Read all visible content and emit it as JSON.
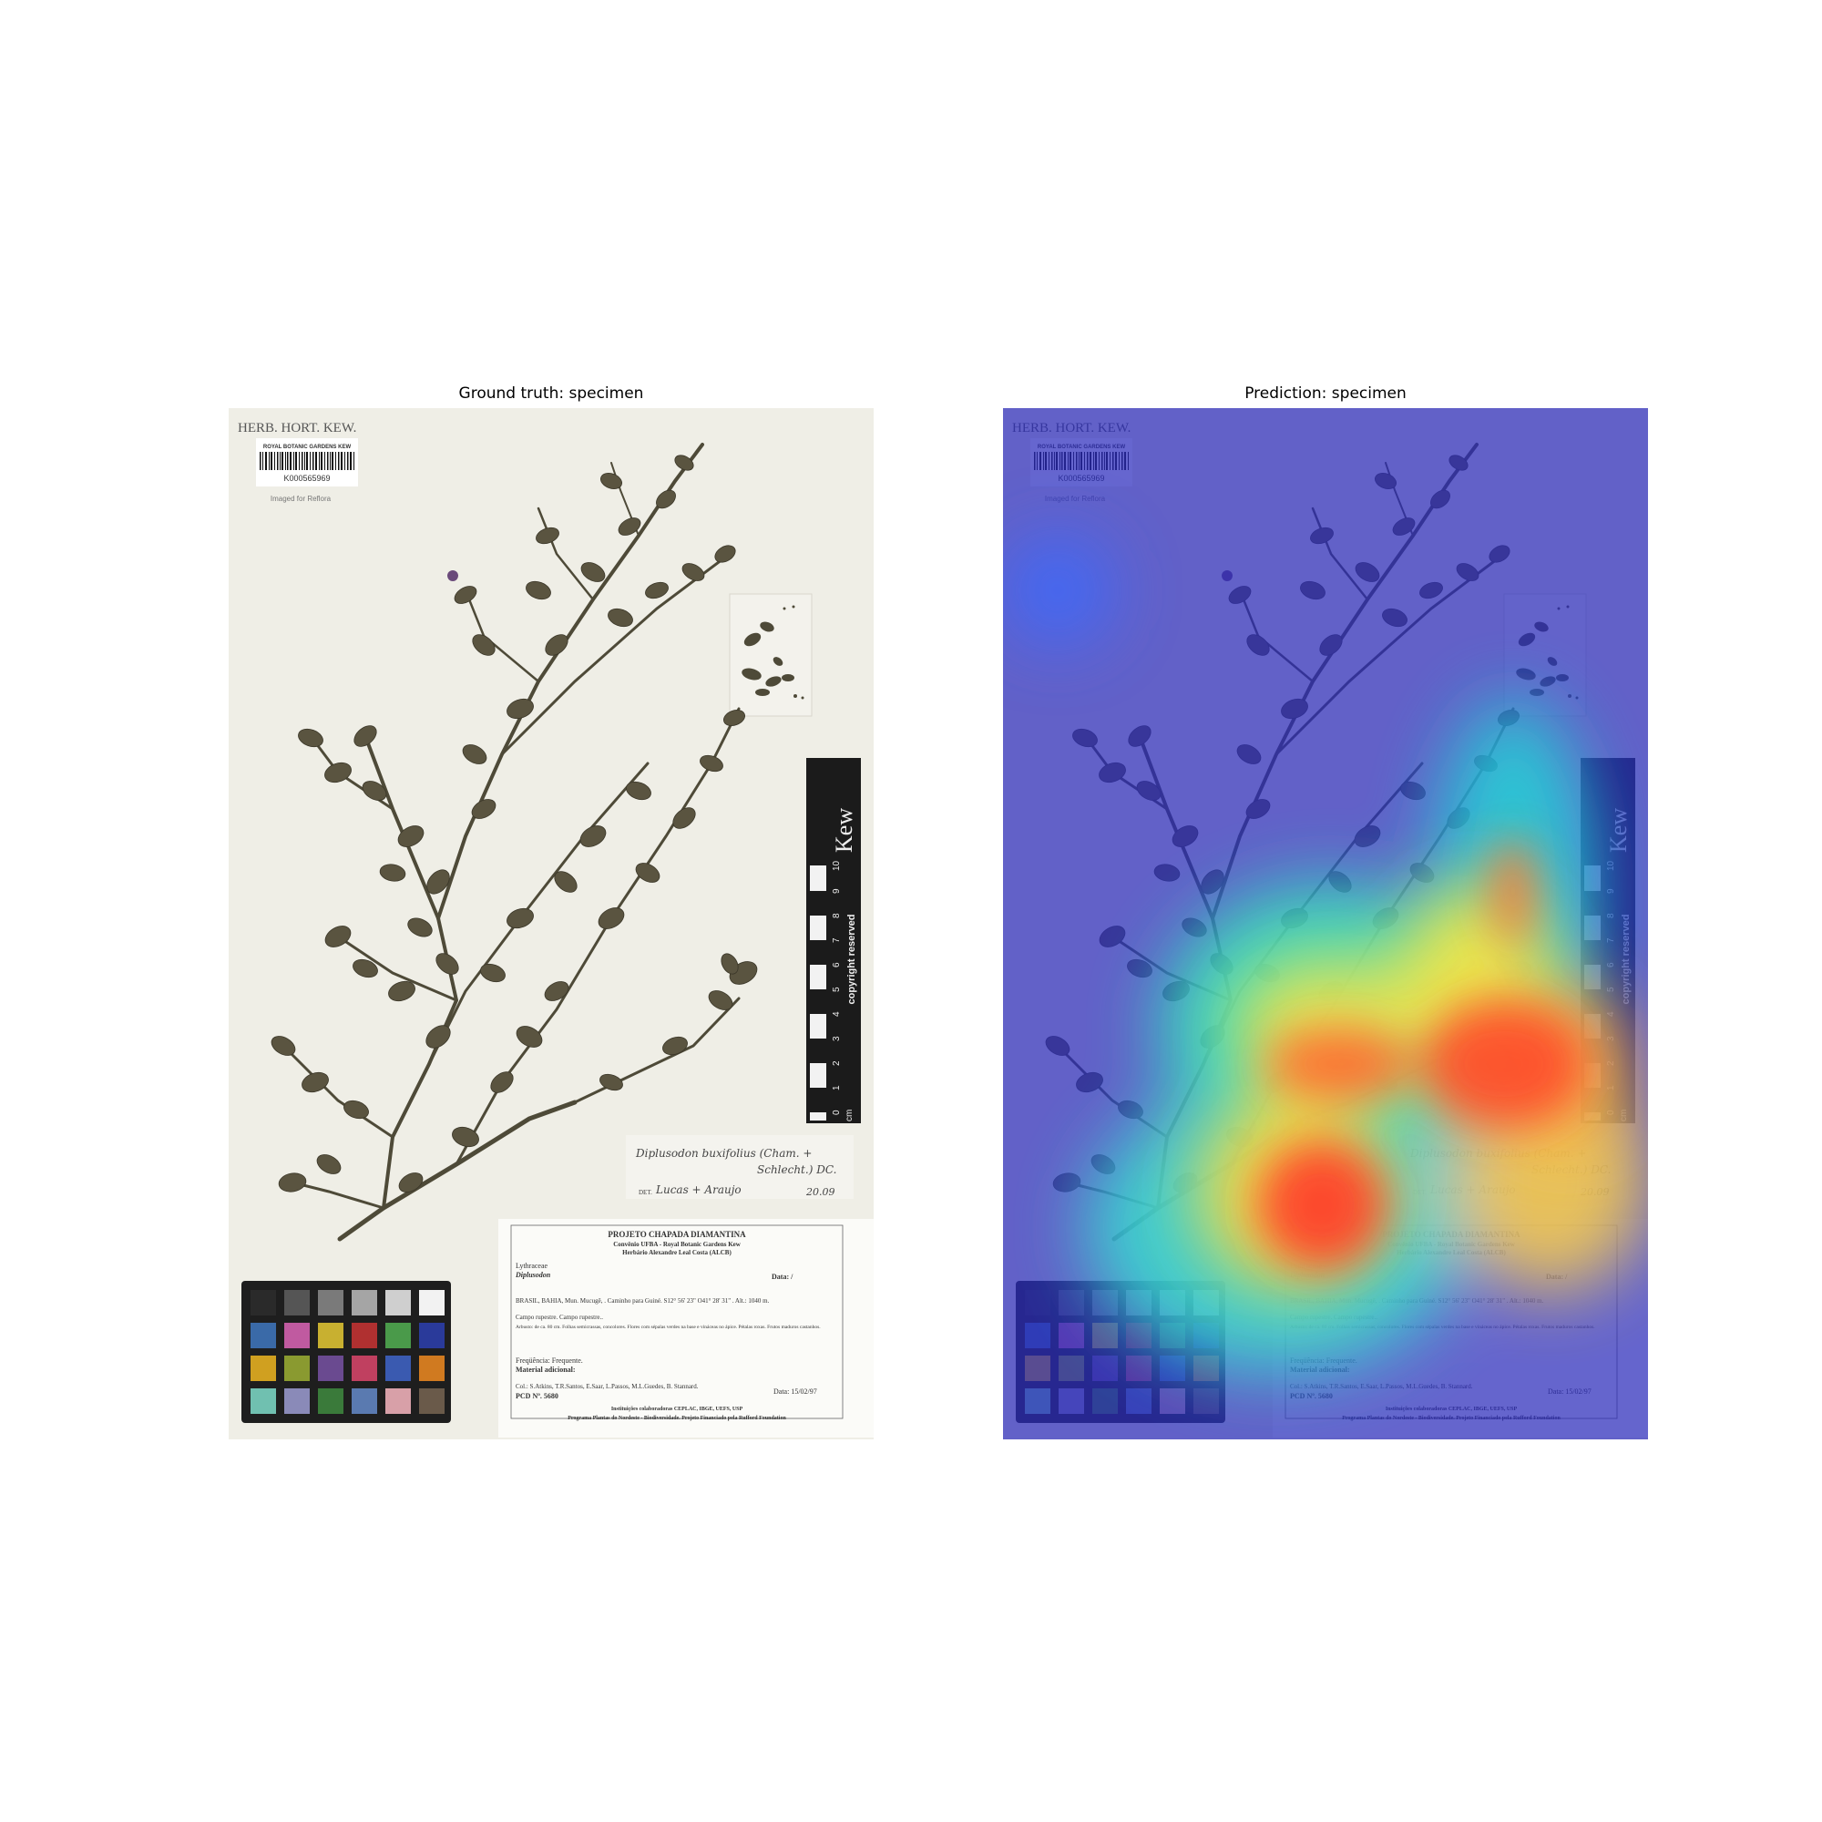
{
  "panels": [
    {
      "title": "Ground truth: specimen",
      "sheet": {
        "herbarium_header": "HERB. HORT. KEW.",
        "barcode_org": "ROYAL BOTANIC GARDENS KEW",
        "barcode_id": "K000565969",
        "imaged_for": "Imaged for Reflora",
        "scale_bar": {
          "brand": "Kew",
          "note": "copyright reserved",
          "unit": "cm",
          "ticks": [
            "0",
            "1",
            "2",
            "3",
            "4",
            "5",
            "6",
            "7",
            "8",
            "9",
            "10"
          ]
        },
        "det_label": {
          "name_line1": "Diplusodon buxifolius (Cham. +",
          "name_line2": "Schlecht.) DC.",
          "det_prefix": "DET.",
          "determiner": "Lucas + Araujo",
          "year": "20.09"
        },
        "collection_label": {
          "project": "PROJETO CHAPADA DIAMANTINA",
          "convenio": "Convênio UFBA - Royal Botanic Gardens Kew",
          "herbarium": "Herbário Alexandre Leal Costa (ALCB)",
          "family": "Lythraceae",
          "genus": "Diplusodon",
          "data_label": "Data: /",
          "locality": "BRASIL, BAHIA, Mun. Mucugê, . Caminho para Guiné. S12° 56' 23\" O41° 28' 31\" . Alt.: 1040 m.",
          "habitat": "Campo rupestre. Campo rupestre..",
          "description": "Arbusto: de ca. 80 cm. Folhas semicrassas, concolores. Flores com sépalas verdes na base e vináceas no ápice. Pétalas roxas. Frutos maduros castanhos.",
          "frequency": "Freqüência: Frequente.",
          "material": "Material adicional:",
          "collectors": "Col.: S.Atkins, T.R.Santos, E.Saar, L.Passos, M.L.Guedes, B. Stannard.",
          "pcd": "PCD Nº. 5680",
          "date": "Data: 15/02/97",
          "institutions": "Instituições colaboradoras CEPLAC, IBGE, UEFS, USP",
          "program": "Programa Plantas do Nordeste - Biodiversidade. Projeto Financiado pela Rufford Foundation"
        }
      }
    },
    {
      "title": "Prediction: specimen",
      "heatmap": {
        "colormap": "jet",
        "overlay_alpha": 0.6
      }
    }
  ],
  "colors": {
    "paper": "#efeee6",
    "plant": "#4e4a38",
    "scale_black": "#1b1b1b",
    "checker": [
      "#2a2a2a",
      "#555555",
      "#7a7a7a",
      "#a5a5a5",
      "#cfcfcf",
      "#f2f2f2",
      "#3a6aa8",
      "#c05aa0",
      "#c8b030",
      "#b03030",
      "#4a9a4a",
      "#2a3a9a",
      "#d0a020",
      "#8a9a30",
      "#6a4a90",
      "#c04060",
      "#3a5ab0",
      "#d07a20",
      "#70c0b0",
      "#8a8ab8",
      "#3a7a3a",
      "#5a7ab0",
      "#d8a0a8",
      "#6a5a4a"
    ]
  }
}
